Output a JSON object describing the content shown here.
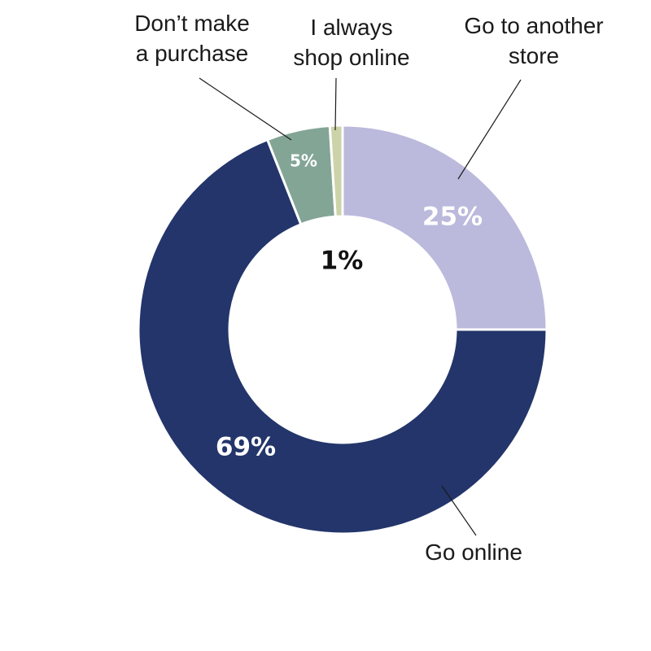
{
  "chart_data": {
    "type": "pie",
    "donut": true,
    "title": "",
    "slices": [
      {
        "label": "Go to another store",
        "label_lines": [
          "Go to another",
          "store"
        ],
        "value": 25,
        "display": "25%",
        "color": "#bbbadc",
        "text_color": "#ffffff"
      },
      {
        "label": "Go online",
        "label_lines": [
          "Go online"
        ],
        "value": 69,
        "display": "69%",
        "color": "#23356a",
        "text_color": "#ffffff"
      },
      {
        "label": "Don’t make a purchase",
        "label_lines": [
          "Don’t make",
          "a purchase"
        ],
        "value": 5,
        "display": "5%",
        "color": "#83a596",
        "text_color": "#ffffff"
      },
      {
        "label": "I always shop online",
        "label_lines": [
          "I always",
          "shop online"
        ],
        "value": 1,
        "display": "1%",
        "color": "#cdd3a8",
        "text_color": "#111111"
      }
    ]
  }
}
